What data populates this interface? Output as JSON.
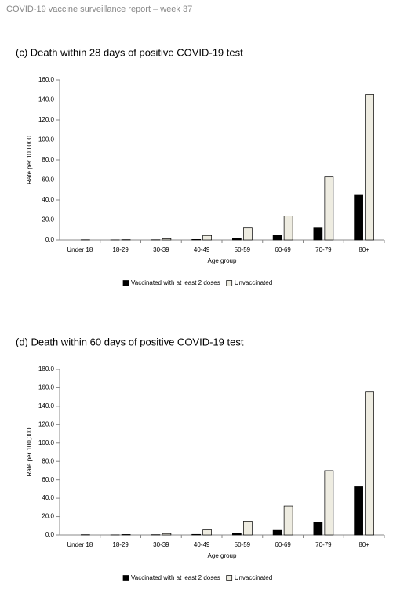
{
  "header": {
    "title": "COVID-19 vaccine surveillance report – week 37"
  },
  "chart_data": [
    {
      "type": "bar",
      "title": "(c) Death within 28 days of positive COVID-19 test",
      "x_label": "Age group",
      "y_label": "Rate per 100,000",
      "categories": [
        "Under 18",
        "18-29",
        "30-39",
        "40-49",
        "50-59",
        "60-69",
        "70-79",
        "80+"
      ],
      "series": [
        {
          "name": "Vaccinated with at least 2 doses",
          "color": "#000000",
          "values": [
            0,
            0.1,
            0.2,
            0.5,
            1.5,
            4.5,
            12,
            45.5
          ]
        },
        {
          "name": "Unvaccinated",
          "color": "#eeece1",
          "values": [
            0.2,
            0.3,
            1.3,
            4.5,
            12,
            24,
            63,
            145.5
          ]
        }
      ],
      "ylim": [
        0,
        160
      ],
      "yticks": [
        {
          "value": 0,
          "label": "0.0"
        },
        {
          "value": 20,
          "label": "20.0"
        },
        {
          "value": 40,
          "label": "40.0"
        },
        {
          "value": 60,
          "label": "60.0"
        },
        {
          "value": 80,
          "label": "80.0"
        },
        {
          "value": 100,
          "label": "100.0"
        },
        {
          "value": 120,
          "label": "120.0"
        },
        {
          "value": 140,
          "label": "140.0"
        },
        {
          "value": 160,
          "label": "160.0"
        }
      ],
      "grid": false,
      "legend": "bottom"
    },
    {
      "type": "bar",
      "title": "(d) Death within 60 days of positive COVID-19 test",
      "x_label": "Age group",
      "y_label": "Rate per 100,000",
      "categories": [
        "Under 18",
        "18-29",
        "30-39",
        "40-49",
        "50-59",
        "60-69",
        "70-79",
        "80+"
      ],
      "series": [
        {
          "name": "Vaccinated with at least 2 doses",
          "color": "#000000",
          "values": [
            0,
            0.1,
            0.3,
            0.6,
            1.8,
            5,
            14,
            52.5
          ]
        },
        {
          "name": "Unvaccinated",
          "color": "#eeece1",
          "values": [
            0.3,
            0.5,
            1.5,
            5.5,
            15,
            31.5,
            70,
            155.5
          ]
        }
      ],
      "ylim": [
        0,
        180
      ],
      "yticks": [
        {
          "value": 0,
          "label": "0.0"
        },
        {
          "value": 20,
          "label": "20.0"
        },
        {
          "value": 40,
          "label": "40.0"
        },
        {
          "value": 60,
          "label": "60.0"
        },
        {
          "value": 80,
          "label": "80.0"
        },
        {
          "value": 100,
          "label": "100.0"
        },
        {
          "value": 120,
          "label": "120.0"
        },
        {
          "value": 140,
          "label": "140.0"
        },
        {
          "value": 160,
          "label": "160.0"
        },
        {
          "value": 180,
          "label": "180.0"
        }
      ],
      "grid": false,
      "legend": "bottom"
    }
  ]
}
